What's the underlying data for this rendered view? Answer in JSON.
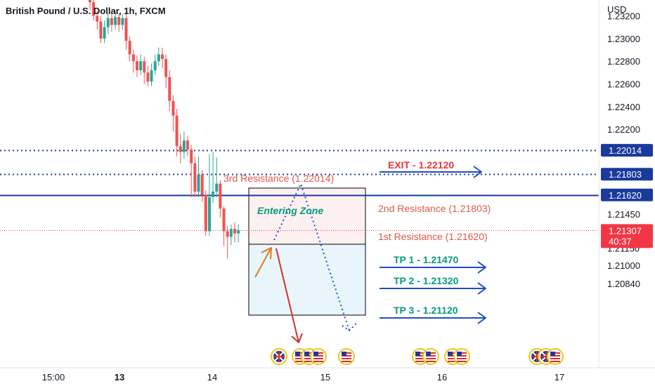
{
  "chart_data": {
    "type": "candlestick",
    "title": "British Pound / U.S. Dollar, 1h, FXCM",
    "currency": "USD",
    "ylim": [
      1.2076,
      1.2334
    ],
    "y_ticks": [
      {
        "value": 1.232,
        "label": "1.23200"
      },
      {
        "value": 1.23,
        "label": "1.23000"
      },
      {
        "value": 1.228,
        "label": "1.22800"
      },
      {
        "value": 1.226,
        "label": "1.22600"
      },
      {
        "value": 1.224,
        "label": "1.22400"
      },
      {
        "value": 1.222,
        "label": "1.22200"
      },
      {
        "value": 1.2145,
        "label": "1.21450"
      },
      {
        "value": 1.2115,
        "label": "1.21150"
      },
      {
        "value": 1.21,
        "label": "1.21000"
      },
      {
        "value": 1.2084,
        "label": "1.20840"
      }
    ],
    "x_ticks": [
      {
        "label": "15:00",
        "bold": false
      },
      {
        "label": "13",
        "bold": true
      },
      {
        "label": "14",
        "bold": false
      },
      {
        "label": "15",
        "bold": false
      },
      {
        "label": "16",
        "bold": false
      },
      {
        "label": "17",
        "bold": false
      }
    ],
    "candles": [
      [
        1.2335,
        1.2332,
        1.2338,
        1.2325
      ],
      [
        1.2332,
        1.232,
        1.2336,
        1.2316
      ],
      [
        1.232,
        1.2315,
        1.2325,
        1.2308
      ],
      [
        1.2315,
        1.23,
        1.232,
        1.2296
      ],
      [
        1.23,
        1.231,
        1.2316,
        1.2296
      ],
      [
        1.231,
        1.2318,
        1.2322,
        1.2304
      ],
      [
        1.2318,
        1.2312,
        1.2322,
        1.2306
      ],
      [
        1.2312,
        1.2319,
        1.2324,
        1.2308
      ],
      [
        1.2319,
        1.2312,
        1.2322,
        1.2306
      ],
      [
        1.2312,
        1.2318,
        1.2322,
        1.2308
      ],
      [
        1.2318,
        1.2298,
        1.2322,
        1.229
      ],
      [
        1.2298,
        1.2286,
        1.2302,
        1.228
      ],
      [
        1.2286,
        1.228,
        1.229,
        1.227
      ],
      [
        1.228,
        1.2272,
        1.2285,
        1.2266
      ],
      [
        1.2272,
        1.228,
        1.2286,
        1.2268
      ],
      [
        1.228,
        1.227,
        1.2284,
        1.226
      ],
      [
        1.227,
        1.2262,
        1.2276,
        1.2258
      ],
      [
        1.2262,
        1.2272,
        1.2278,
        1.2258
      ],
      [
        1.2272,
        1.228,
        1.2286,
        1.2268
      ],
      [
        1.228,
        1.2286,
        1.2292,
        1.2276
      ],
      [
        1.2286,
        1.2282,
        1.2292,
        1.2274
      ],
      [
        1.2282,
        1.2266,
        1.2286,
        1.2256
      ],
      [
        1.2266,
        1.2245,
        1.2272,
        1.2236
      ],
      [
        1.2245,
        1.2232,
        1.225,
        1.2218
      ],
      [
        1.2232,
        1.2205,
        1.2238,
        1.2196
      ],
      [
        1.2205,
        1.22,
        1.2216,
        1.219
      ],
      [
        1.22,
        1.221,
        1.2218,
        1.2194
      ],
      [
        1.221,
        1.2202,
        1.2214,
        1.2196
      ],
      [
        1.2202,
        1.219,
        1.2206,
        1.216
      ],
      [
        1.219,
        1.2165,
        1.2196,
        1.216
      ],
      [
        1.2165,
        1.218,
        1.2196,
        1.216
      ],
      [
        1.218,
        1.2162,
        1.2184,
        1.2156
      ],
      [
        1.2162,
        1.213,
        1.2166,
        1.2126
      ],
      [
        1.213,
        1.216,
        1.2198,
        1.2126
      ],
      [
        1.216,
        1.2165,
        1.22,
        1.2155
      ],
      [
        1.2165,
        1.2172,
        1.2195,
        1.216
      ],
      [
        1.2172,
        1.215,
        1.2175,
        1.2142
      ],
      [
        1.215,
        1.213,
        1.2152,
        1.2117
      ],
      [
        1.213,
        1.2125,
        1.2135,
        1.2106
      ],
      [
        1.2125,
        1.2132,
        1.2136,
        1.2118
      ],
      [
        1.2132,
        1.2128,
        1.2138,
        1.212
      ],
      [
        1.2128,
        1.2131,
        1.2136,
        1.212
      ]
    ],
    "levels": [
      {
        "value": 1.22014,
        "label": "1.22014",
        "style": "dotted"
      },
      {
        "value": 1.21803,
        "label": "1.21803",
        "style": "dotted"
      },
      {
        "value": 1.2162,
        "label": "1.21620",
        "style": "solid"
      },
      {
        "value": 1.21307,
        "label": "1.21307",
        "countdown": "40:37",
        "style": "current"
      }
    ],
    "annotations": {
      "third_resistance": "3rd Resistance (1.22014)",
      "second_resistance": "2nd Resistance (1.21803)",
      "first_resistance": "1st Resistance (1.21620)",
      "entering_zone": "Entering Zone",
      "exit": "EXIT - 1.22120",
      "tp1": "TP 1 - 1.21470",
      "tp2": "TP 2 - 1.21320",
      "tp3": "TP 3 - 1.21120"
    },
    "colors": {
      "up": "#26a69a",
      "down": "#ef5350",
      "level_blue": "#1a3a9c",
      "resistance_text": "#e0574a",
      "exit_text": "#e53935",
      "tp_text": "#089981",
      "arrow_blue": "#1e4fc4",
      "current_price": "#f23645"
    },
    "events": [
      "uk-flag-icon",
      "us-flag-icon",
      "us-flag-icon",
      "us-flag-icon",
      "us-flag-icon",
      "us-flag-icon",
      "us-flag-icon",
      "us-flag-icon",
      "us-flag-icon",
      "us-flag-icon",
      "uk-flag-icon",
      "uk-flag-icon",
      "us-flag-icon"
    ]
  }
}
